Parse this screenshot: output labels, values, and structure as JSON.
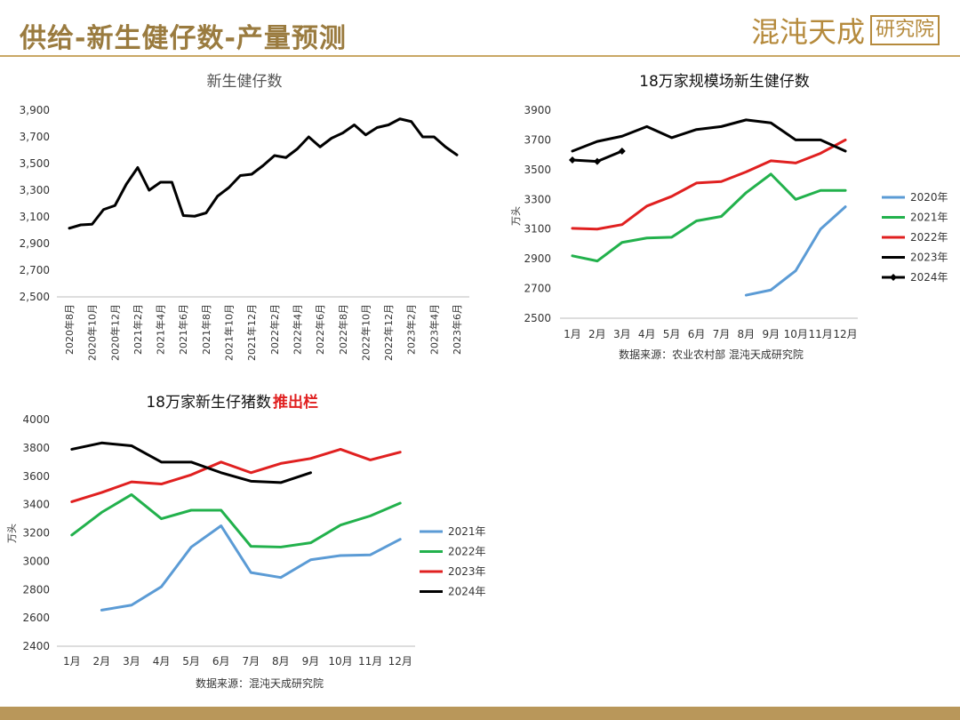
{
  "header": {
    "title": "供给-新生健仔数-产量预测",
    "logo_script": "混沌天成",
    "logo_box": "研究院"
  },
  "charts": {
    "c1": {
      "title": "新生健仔数"
    },
    "c2": {
      "title": "18万家规模场新生健仔数",
      "ylabel": "万头",
      "source": "数据来源：农业农村部 混沌天成研究院"
    },
    "c3": {
      "title_main": "18万家新生仔猪数",
      "title_red": "推出栏",
      "ylabel": "万头",
      "source": "数据来源：混沌天成研究院"
    }
  },
  "chart_data": [
    {
      "type": "line",
      "title": "新生健仔数",
      "ylim": [
        2500,
        3900
      ],
      "yticks": [
        "2,500",
        "2,700",
        "2,900",
        "3,100",
        "3,300",
        "3,500",
        "3,700",
        "3,900"
      ],
      "tick_labels": [
        "2020年8月",
        "2020年10月",
        "2020年12月",
        "2021年2月",
        "2021年4月",
        "2021年6月",
        "2021年8月",
        "2021年10月",
        "2021年12月",
        "2022年2月",
        "2022年4月",
        "2022年6月",
        "2022年8月",
        "2022年10月",
        "2022年12月",
        "2023年2月",
        "2023年4月",
        "2023年6月"
      ],
      "grid": false,
      "series": [
        {
          "color": "#000000",
          "values": [
            3015,
            3040,
            3045,
            3155,
            3185,
            3345,
            3470,
            3300,
            3360,
            3360,
            3110,
            3105,
            3130,
            3255,
            3320,
            3410,
            3420,
            3485,
            3560,
            3545,
            3610,
            3700,
            3625,
            3690,
            3730,
            3790,
            3715,
            3770,
            3790,
            3835,
            3815,
            3700,
            3700,
            3625,
            3565
          ]
        }
      ]
    },
    {
      "type": "line",
      "title": "18万家规模场新生健仔数",
      "ylabel": "万头",
      "ylim": [
        2500,
        3900
      ],
      "yticks": [
        "2500",
        "2700",
        "2900",
        "3100",
        "3300",
        "3500",
        "3700",
        "3900"
      ],
      "categories": [
        "1月",
        "2月",
        "3月",
        "4月",
        "5月",
        "6月",
        "7月",
        "8月",
        "9月",
        "10月",
        "11月",
        "12月"
      ],
      "legend": "right",
      "series": [
        {
          "name": "2020年",
          "color": "#5b9bd5",
          "values": [
            null,
            null,
            null,
            null,
            null,
            null,
            null,
            2655,
            2690,
            2820,
            3100,
            3250
          ]
        },
        {
          "name": "2021年",
          "color": "#22b14c",
          "values": [
            2920,
            2885,
            3010,
            3040,
            3045,
            3155,
            3185,
            3345,
            3470,
            3300,
            3360,
            3360
          ]
        },
        {
          "name": "2022年",
          "color": "#e02020",
          "values": [
            3105,
            3100,
            3130,
            3255,
            3320,
            3410,
            3420,
            3485,
            3560,
            3545,
            3610,
            3700
          ]
        },
        {
          "name": "2023年",
          "color": "#000000",
          "values": [
            3625,
            3690,
            3725,
            3790,
            3715,
            3770,
            3790,
            3835,
            3815,
            3700,
            3700,
            3625
          ]
        },
        {
          "name": "2024年",
          "color": "#000000",
          "marker": "diamond",
          "values": [
            3565,
            3555,
            3625,
            null,
            null,
            null,
            null,
            null,
            null,
            null,
            null,
            null
          ]
        }
      ]
    },
    {
      "type": "line",
      "title": "18万家新生仔猪数推出栏",
      "ylabel": "万头",
      "ylim": [
        2400,
        4000
      ],
      "yticks": [
        "2400",
        "2600",
        "2800",
        "3000",
        "3200",
        "3400",
        "3600",
        "3800",
        "4000"
      ],
      "categories": [
        "1月",
        "2月",
        "3月",
        "4月",
        "5月",
        "6月",
        "7月",
        "8月",
        "9月",
        "10月",
        "11月",
        "12月"
      ],
      "legend": "right",
      "series": [
        {
          "name": "2021年",
          "color": "#5b9bd5",
          "values": [
            null,
            2655,
            2690,
            2820,
            3100,
            3250,
            2920,
            2885,
            3010,
            3040,
            3045,
            3155
          ]
        },
        {
          "name": "2022年",
          "color": "#22b14c",
          "values": [
            3185,
            3345,
            3470,
            3300,
            3360,
            3360,
            3105,
            3100,
            3130,
            3255,
            3320,
            3410
          ]
        },
        {
          "name": "2023年",
          "color": "#e02020",
          "values": [
            3420,
            3485,
            3560,
            3545,
            3610,
            3700,
            3625,
            3690,
            3725,
            3790,
            3715,
            3770
          ]
        },
        {
          "name": "2024年",
          "color": "#000000",
          "values": [
            3790,
            3835,
            3815,
            3700,
            3700,
            3625,
            3565,
            3555,
            3625,
            null,
            null,
            null
          ]
        }
      ]
    }
  ]
}
